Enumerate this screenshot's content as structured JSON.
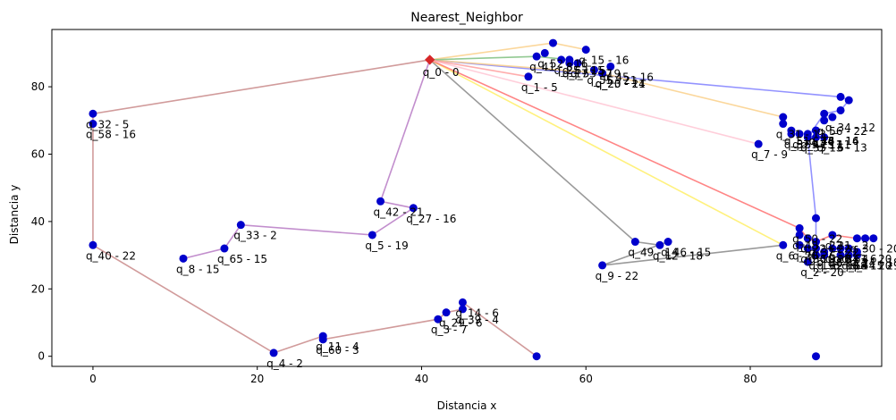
{
  "chart_data": {
    "type": "scatter",
    "title": "Nearest_Neighbor",
    "xlabel": "Distancia x",
    "ylabel": "Distancia y",
    "xlim": [
      -5,
      96
    ],
    "ylim": [
      -3,
      97
    ],
    "xticks": [
      0,
      20,
      40,
      60,
      80
    ],
    "yticks": [
      0,
      20,
      40,
      60,
      80
    ],
    "depot": {
      "x": 41,
      "y": 88,
      "label": "q_0 - 0",
      "color": "#d62728"
    },
    "point_color": "#0000cc",
    "points": [
      {
        "x": 53,
        "y": 83,
        "label": "q_1 - 5"
      },
      {
        "x": 87,
        "y": 28,
        "label": "q_2 - 20"
      },
      {
        "x": 42,
        "y": 11,
        "label": "q_3 - 7"
      },
      {
        "x": 22,
        "y": 1,
        "label": "q_4 - 2"
      },
      {
        "x": 34,
        "y": 36,
        "label": "q_5 - 19"
      },
      {
        "x": 84,
        "y": 33,
        "label": "q_6 - 1"
      },
      {
        "x": 81,
        "y": 63,
        "label": "q_7 - 9"
      },
      {
        "x": 11,
        "y": 29,
        "label": "q_8 - 15"
      },
      {
        "x": 62,
        "y": 27,
        "label": "q_9 - 22"
      },
      {
        "x": 88,
        "y": 32,
        "label": "q_10 - 2"
      },
      {
        "x": 28,
        "y": 6,
        "label": "q_11 - 4"
      },
      {
        "x": 69,
        "y": 33,
        "label": "q_12 - 18"
      },
      {
        "x": 89,
        "y": 65,
        "label": "q_13 - 13"
      },
      {
        "x": 45,
        "y": 16,
        "label": "q_14 - 6"
      },
      {
        "x": 60,
        "y": 91,
        "label": "q_15 - 16"
      },
      {
        "x": 88,
        "y": 67,
        "label": "q_16 - 16"
      },
      {
        "x": 58,
        "y": 87,
        "label": "q_17 - 17"
      },
      {
        "x": 91,
        "y": 30,
        "label": "q_18 - 15"
      },
      {
        "x": 88,
        "y": 30,
        "label": "q_19 - 6"
      },
      {
        "x": 62,
        "y": 84,
        "label": "q_20 - 14"
      },
      {
        "x": 90,
        "y": 36,
        "label": "q_21 - 2"
      },
      {
        "x": 87,
        "y": 35,
        "label": "q_22 - 22"
      },
      {
        "x": 62,
        "y": 84,
        "label": "q_23 - 21"
      },
      {
        "x": 93,
        "y": 31,
        "label": "q_24 - 18"
      },
      {
        "x": 57,
        "y": 88,
        "label": "q_25 - 15"
      },
      {
        "x": 90,
        "y": 32,
        "label": "q_26 - 4"
      },
      {
        "x": 39,
        "y": 44,
        "label": "q_27 - 16"
      },
      {
        "x": 86,
        "y": 33,
        "label": "q_28 - 6"
      },
      {
        "x": 43,
        "y": 13,
        "label": "q_29 - 6"
      },
      {
        "x": 93,
        "y": 35,
        "label": "q_30 - 20"
      },
      {
        "x": 84,
        "y": 69,
        "label": "q_31 - 13"
      },
      {
        "x": 0,
        "y": 72,
        "label": "q_32 - 5"
      },
      {
        "x": 18,
        "y": 39,
        "label": "q_33 - 2"
      },
      {
        "x": 90,
        "y": 71,
        "label": "q_34 - 12"
      },
      {
        "x": 87,
        "y": 65,
        "label": "q_35 - 6"
      },
      {
        "x": 87,
        "y": 32,
        "label": "q_36 - 12"
      },
      {
        "x": 88,
        "y": 34,
        "label": "q_37 - 22"
      },
      {
        "x": 89,
        "y": 31,
        "label": "q_38 - 13"
      },
      {
        "x": 45,
        "y": 14,
        "label": "q_39 - 4"
      },
      {
        "x": 0,
        "y": 33,
        "label": "q_40 - 22"
      },
      {
        "x": 54,
        "y": 89,
        "label": "q_41 - 8"
      },
      {
        "x": 35,
        "y": 46,
        "label": "q_42 - 21"
      },
      {
        "x": 88,
        "y": 67,
        "label": "q_43 - 14"
      },
      {
        "x": 93,
        "y": 30,
        "label": "q_44 - 21"
      },
      {
        "x": 63,
        "y": 86,
        "label": "q_45 - 16"
      },
      {
        "x": 70,
        "y": 34,
        "label": "q_46 - 15"
      },
      {
        "x": 87,
        "y": 66,
        "label": "q_47 - 11"
      },
      {
        "x": 86,
        "y": 36,
        "label": "q_48 - 22"
      },
      {
        "x": 66,
        "y": 34,
        "label": "q_49 - 14"
      },
      {
        "x": 86,
        "y": 38,
        "label": "q_50 - 22"
      },
      {
        "x": 85,
        "y": 67,
        "label": "q_51 - 14"
      },
      {
        "x": 55,
        "y": 90,
        "label": "q_52 - 16"
      },
      {
        "x": 59,
        "y": 87,
        "label": "q_53 - 19"
      },
      {
        "x": 91,
        "y": 32,
        "label": "q_54 - 6"
      },
      {
        "x": 61,
        "y": 85,
        "label": "q_55 - 21"
      },
      {
        "x": 89,
        "y": 70,
        "label": "q_56 - 22"
      },
      {
        "x": 85,
        "y": 66,
        "label": "q_57 - 15"
      },
      {
        "x": 0,
        "y": 69,
        "label": "q_58 - 16"
      },
      {
        "x": 86,
        "y": 66,
        "label": "q_59 - 11"
      },
      {
        "x": 28,
        "y": 5,
        "label": "q_60 - 3"
      },
      {
        "x": 92,
        "y": 32,
        "label": "q_61 - 20"
      },
      {
        "x": 89,
        "y": 30,
        "label": "q_62 - 18"
      },
      {
        "x": 58,
        "y": 88,
        "label": "q_63 - 5"
      },
      {
        "x": 92,
        "y": 30,
        "label": "q_64 - 20"
      },
      {
        "x": 16,
        "y": 32,
        "label": "q_65 - 15"
      }
    ],
    "unlabeled_points": [
      {
        "x": 54,
        "y": 0
      },
      {
        "x": 88,
        "y": 0
      },
      {
        "x": 56,
        "y": 93
      },
      {
        "x": 88,
        "y": 41
      },
      {
        "x": 92,
        "y": 76
      },
      {
        "x": 91,
        "y": 77
      },
      {
        "x": 89,
        "y": 72
      },
      {
        "x": 91,
        "y": 73
      },
      {
        "x": 84,
        "y": 71
      },
      {
        "x": 88,
        "y": 65
      },
      {
        "x": 94,
        "y": 35
      },
      {
        "x": 95,
        "y": 35
      }
    ],
    "routes": [
      {
        "name": "route-brown",
        "color": "#c98a8a",
        "points": [
          [
            41,
            88
          ],
          [
            0,
            72
          ],
          [
            0,
            69
          ],
          [
            0,
            33
          ],
          [
            22,
            1
          ],
          [
            28,
            6
          ],
          [
            28,
            5
          ],
          [
            42,
            11
          ],
          [
            43,
            13
          ],
          [
            45,
            14
          ],
          [
            45,
            16
          ],
          [
            54,
            0
          ]
        ]
      },
      {
        "name": "route-purple",
        "color": "#b77ac4",
        "points": [
          [
            41,
            88
          ],
          [
            35,
            46
          ],
          [
            39,
            44
          ],
          [
            34,
            36
          ],
          [
            18,
            39
          ],
          [
            16,
            32
          ],
          [
            11,
            29
          ]
        ]
      },
      {
        "name": "route-gray",
        "color": "#888888",
        "points": [
          [
            41,
            88
          ],
          [
            66,
            34
          ],
          [
            69,
            33
          ],
          [
            70,
            34
          ],
          [
            62,
            27
          ],
          [
            84,
            33
          ]
        ]
      },
      {
        "name": "route-yellow",
        "color": "#ffee66",
        "points": [
          [
            41,
            88
          ],
          [
            84,
            33
          ]
        ]
      },
      {
        "name": "route-red",
        "color": "#ff7070",
        "points": [
          [
            41,
            88
          ],
          [
            86,
            38
          ],
          [
            87,
            35
          ],
          [
            88,
            34
          ],
          [
            90,
            36
          ],
          [
            93,
            35
          ],
          [
            95,
            35
          ]
        ]
      },
      {
        "name": "route-pink",
        "color": "#ffc6d4",
        "points": [
          [
            41,
            88
          ],
          [
            81,
            63
          ]
        ]
      },
      {
        "name": "route-blue",
        "color": "#8080ff",
        "points": [
          [
            41,
            88
          ],
          [
            91,
            77
          ],
          [
            92,
            76
          ],
          [
            91,
            73
          ],
          [
            89,
            72
          ],
          [
            87,
            65
          ],
          [
            88,
            41
          ],
          [
            88,
            36
          ]
        ]
      },
      {
        "name": "route-orange",
        "color": "#fad08a",
        "points": [
          [
            41,
            88
          ],
          [
            56,
            93
          ],
          [
            60,
            91
          ]
        ]
      },
      {
        "name": "route-orange2",
        "color": "#fad08a",
        "points": [
          [
            41,
            88
          ],
          [
            62,
            84
          ],
          [
            84,
            71
          ],
          [
            84,
            69
          ]
        ]
      },
      {
        "name": "route-green",
        "color": "#7fbf7f",
        "points": [
          [
            41,
            88
          ],
          [
            54,
            89
          ],
          [
            58,
            88
          ]
        ]
      },
      {
        "name": "route-salmon",
        "color": "#ff9f9f",
        "points": [
          [
            41,
            88
          ],
          [
            53,
            83
          ]
        ]
      }
    ]
  }
}
